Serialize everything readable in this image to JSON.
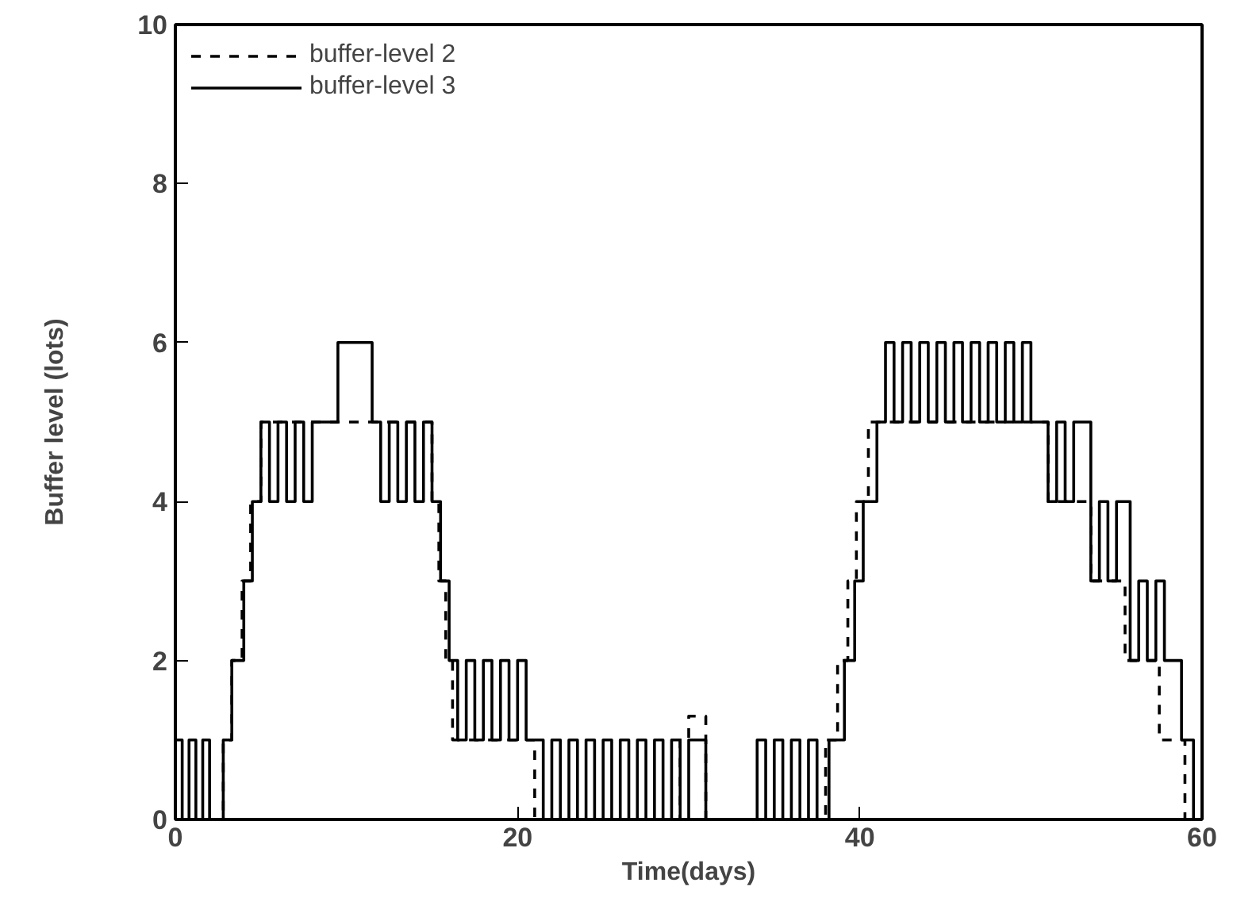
{
  "chart_data": {
    "type": "step",
    "xlabel": "Time(days)",
    "ylabel": "Buffer level (lots)",
    "xlim": [
      0,
      60
    ],
    "ylim": [
      0,
      10
    ],
    "xticks": [
      0,
      20,
      40,
      60
    ],
    "yticks": [
      0,
      2,
      4,
      6,
      8,
      10
    ],
    "grid": false,
    "legend": "top left",
    "series": [
      {
        "name": "buffer-level 2",
        "color": "#000000",
        "line_style": "dashed",
        "x": [
          0,
          2.5,
          2.8,
          3.3,
          3.9,
          4.4,
          5,
          15,
          15.4,
          15.8,
          16.2,
          21,
          29.5,
          30,
          31,
          38,
          38.7,
          39.3,
          39.8,
          40.5,
          51,
          53.5,
          55.5,
          57.5,
          59,
          60
        ],
        "values": [
          0,
          0,
          1,
          2,
          3,
          4,
          5,
          4,
          3,
          2,
          1,
          0,
          1,
          1.3,
          0,
          1,
          2,
          3,
          4,
          5,
          4,
          3,
          2,
          1,
          0,
          0
        ]
      },
      {
        "name": "buffer-level 3",
        "color": "#000000",
        "line_style": "solid",
        "x": [
          0,
          0.4,
          0.8,
          1.2,
          1.6,
          2,
          2.4,
          2.8,
          3.3,
          4,
          4.5,
          5,
          5.5,
          6,
          6.5,
          7,
          7.5,
          8,
          9.5,
          11.5,
          12,
          12.5,
          13,
          13.5,
          14,
          14.5,
          15,
          15.5,
          16,
          16.5,
          17,
          17.5,
          18,
          18.5,
          19,
          19.5,
          20,
          20.5,
          21.5,
          22,
          22.5,
          23,
          23.5,
          24,
          24.5,
          25,
          25.5,
          26,
          26.5,
          27,
          27.5,
          28,
          28.5,
          29,
          29.5,
          30,
          31,
          34,
          34.5,
          35,
          35.5,
          36,
          36.5,
          37,
          37.5,
          38.2,
          39.1,
          39.7,
          40.2,
          41,
          41.5,
          42,
          42.5,
          43,
          43.5,
          44,
          44.5,
          45,
          45.5,
          46,
          46.5,
          47,
          47.5,
          48,
          48.5,
          49,
          49.5,
          50,
          51,
          51.5,
          52,
          52.5,
          53.5,
          54,
          54.5,
          55,
          55.8,
          56.3,
          56.8,
          57.3,
          57.8,
          58.8,
          59.5,
          60
        ],
        "values": [
          1,
          0,
          1,
          0,
          1,
          0,
          0,
          1,
          2,
          3,
          4,
          5,
          4,
          5,
          4,
          5,
          4,
          5,
          6,
          5,
          4,
          5,
          4,
          5,
          4,
          5,
          4,
          3,
          2,
          1,
          2,
          1,
          2,
          1,
          2,
          1,
          2,
          1,
          0,
          1,
          0,
          1,
          0,
          1,
          0,
          1,
          0,
          1,
          0,
          1,
          0,
          1,
          0,
          1,
          0,
          1,
          0,
          1,
          0,
          1,
          0,
          1,
          0,
          1,
          0,
          1,
          2,
          3,
          4,
          5,
          6,
          5,
          6,
          5,
          6,
          5,
          6,
          5,
          6,
          5,
          6,
          5,
          6,
          5,
          6,
          5,
          6,
          5,
          4,
          5,
          4,
          5,
          3,
          4,
          3,
          4,
          2,
          3,
          2,
          3,
          2,
          1,
          0,
          0
        ]
      }
    ]
  }
}
